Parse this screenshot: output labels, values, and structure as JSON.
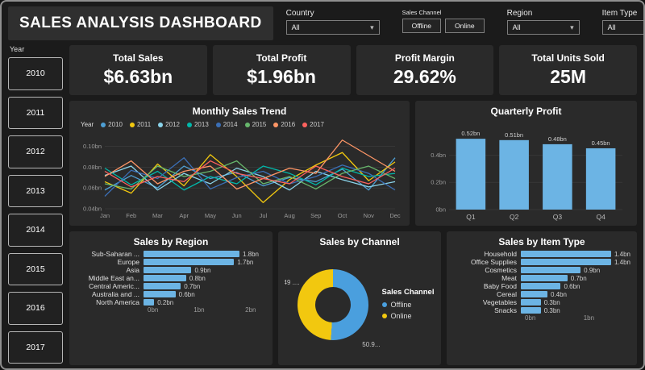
{
  "header": {
    "title": "SALES ANALYSIS DASHBOARD",
    "filters": [
      {
        "label": "Country",
        "value": "All"
      },
      {
        "label": "Sales Channel",
        "options": [
          "Offline",
          "Online"
        ]
      },
      {
        "label": "Region",
        "value": "All"
      },
      {
        "label": "Item Type",
        "value": "All"
      }
    ]
  },
  "year_slicer": {
    "label": "Year",
    "years": [
      "2010",
      "2011",
      "2012",
      "2013",
      "2014",
      "2015",
      "2016",
      "2017"
    ]
  },
  "kpis": [
    {
      "title": "Total Sales",
      "value": "$6.63bn"
    },
    {
      "title": "Total Profit",
      "value": "$1.96bn"
    },
    {
      "title": "Profit Margin",
      "value": "29.62%"
    },
    {
      "title": "Total Units Sold",
      "value": "25M"
    }
  ],
  "colors": {
    "accent_bar": "#6CB4E4",
    "offline": "#4A9FDE",
    "online": "#F2C80F"
  },
  "chart_data": [
    {
      "type": "line",
      "title": "Monthly Sales Trend",
      "legend_title": "Year",
      "x": [
        "Jan",
        "Feb",
        "Mar",
        "Apr",
        "May",
        "Jun",
        "Jul",
        "Aug",
        "Sep",
        "Oct",
        "Nov",
        "Dec"
      ],
      "ylim": [
        0.04,
        0.112
      ],
      "yticks": [
        {
          "v": 0.04,
          "label": "0.04bn"
        },
        {
          "v": 0.06,
          "label": "0.06bn"
        },
        {
          "v": 0.08,
          "label": "0.08bn"
        },
        {
          "v": 0.1,
          "label": "0.10bn"
        }
      ],
      "series": [
        {
          "name": "2010",
          "color": "#4E9FD4",
          "values": [
            0.058,
            0.072,
            0.06,
            0.081,
            0.069,
            0.075,
            0.062,
            0.07,
            0.066,
            0.078,
            0.058,
            0.089
          ]
        },
        {
          "name": "2011",
          "color": "#F2C80F",
          "values": [
            0.066,
            0.055,
            0.083,
            0.062,
            0.092,
            0.071,
            0.046,
            0.068,
            0.082,
            0.094,
            0.067,
            0.085
          ]
        },
        {
          "name": "2012",
          "color": "#8AD4EB",
          "values": [
            0.072,
            0.081,
            0.058,
            0.074,
            0.064,
            0.079,
            0.071,
            0.058,
            0.076,
            0.068,
            0.061,
            0.066
          ]
        },
        {
          "name": "2013",
          "color": "#01B8AA",
          "values": [
            0.079,
            0.063,
            0.076,
            0.058,
            0.071,
            0.064,
            0.081,
            0.074,
            0.063,
            0.079,
            0.071,
            0.074
          ]
        },
        {
          "name": "2014",
          "color": "#3B6FB6",
          "values": [
            0.052,
            0.077,
            0.069,
            0.089,
            0.059,
            0.07,
            0.076,
            0.064,
            0.071,
            0.082,
            0.074,
            0.058
          ]
        },
        {
          "name": "2015",
          "color": "#67B76C",
          "values": [
            0.064,
            0.059,
            0.081,
            0.071,
            0.076,
            0.086,
            0.064,
            0.071,
            0.059,
            0.074,
            0.081,
            0.069
          ]
        },
        {
          "name": "2016",
          "color": "#FE9666",
          "values": [
            0.071,
            0.086,
            0.064,
            0.076,
            0.081,
            0.059,
            0.069,
            0.079,
            0.074,
            0.106,
            0.091,
            0.076
          ]
        },
        {
          "name": "2017",
          "color": "#FD625E",
          "values": [
            0.076,
            0.061,
            0.071,
            0.066,
            0.086,
            0.074,
            0.069,
            0.064,
            0.081,
            0.071,
            0.064,
            0.079
          ]
        }
      ]
    },
    {
      "type": "bar",
      "title": "Quarterly Profit",
      "categories": [
        "Q1",
        "Q2",
        "Q3",
        "Q4"
      ],
      "values": [
        0.52,
        0.51,
        0.48,
        0.45
      ],
      "value_labels": [
        "0.52bn",
        "0.51bn",
        "0.48bn",
        "0.45bn"
      ],
      "ylim": [
        0,
        0.58
      ],
      "yticks": [
        {
          "v": 0,
          "label": "0bn"
        },
        {
          "v": 0.2,
          "label": "0.2bn"
        },
        {
          "v": 0.4,
          "label": "0.4bn"
        }
      ],
      "bar_color": "#6CB4E4"
    },
    {
      "type": "bar-horizontal",
      "title": "Sales by Region",
      "categories": [
        "Sub-Saharan ...",
        "Europe",
        "Asia",
        "Middle East an...",
        "Central Americ...",
        "Australia and ...",
        "North America"
      ],
      "values": [
        1.8,
        1.7,
        0.9,
        0.8,
        0.7,
        0.6,
        0.2
      ],
      "value_labels": [
        "1.8bn",
        "1.7bn",
        "0.9bn",
        "0.8bn",
        "0.7bn",
        "0.6bn",
        "0.2bn"
      ],
      "xlim": [
        0,
        2.3
      ],
      "xticks": [
        {
          "v": 0,
          "label": "0bn"
        },
        {
          "v": 1,
          "label": "1bn"
        },
        {
          "v": 2,
          "label": "2bn"
        }
      ],
      "bar_color": "#6CB4E4"
    },
    {
      "type": "pie",
      "title": "Sales by Channel",
      "legend_title": "Sales Channel",
      "slices": [
        {
          "name": "Offline",
          "value": 50.95,
          "label": "50.9...",
          "color": "#4A9FDE"
        },
        {
          "name": "Online",
          "value": 49.05,
          "label": "49 ....",
          "color": "#F2C80F"
        }
      ]
    },
    {
      "type": "bar-horizontal",
      "title": "Sales by Item Type",
      "categories": [
        "Household",
        "Office Supplies",
        "Cosmetics",
        "Meat",
        "Baby Food",
        "Cereal",
        "Vegetables",
        "Snacks"
      ],
      "values": [
        1.4,
        1.4,
        0.9,
        0.7,
        0.6,
        0.4,
        0.3,
        0.3
      ],
      "value_labels": [
        "1.4bn",
        "1.4bn",
        "0.9bn",
        "0.7bn",
        "0.6bn",
        "0.4bn",
        "0.3bn",
        "0.3bn"
      ],
      "xlim": [
        0,
        1.65
      ],
      "xticks": [
        {
          "v": 0,
          "label": "0bn"
        },
        {
          "v": 1,
          "label": "1bn"
        }
      ],
      "bar_color": "#6CB4E4"
    }
  ]
}
